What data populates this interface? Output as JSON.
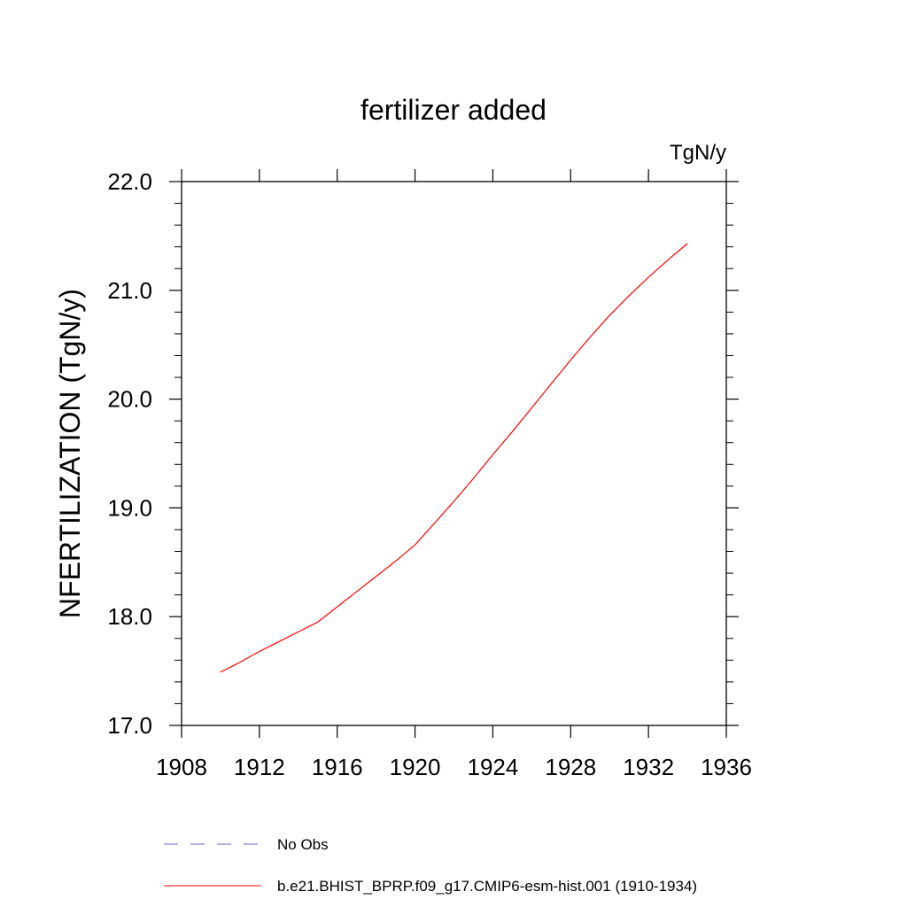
{
  "chart_data": {
    "type": "line",
    "title": "fertilizer added",
    "units_label": "TgN/y",
    "ylabel": "NFERTILIZATION  (TgN/y)",
    "xlabel": "",
    "xlim": [
      1908,
      1936
    ],
    "ylim": [
      17.0,
      22.0
    ],
    "x_ticks": [
      "1908",
      "1912",
      "1916",
      "1920",
      "1924",
      "1928",
      "1932",
      "1936"
    ],
    "y_ticks": [
      "17.0",
      "18.0",
      "19.0",
      "20.0",
      "21.0",
      "22.0"
    ],
    "grid": false,
    "legend_position": "bottom",
    "series": [
      {
        "name": "b.e21.BHIST_BPRP.f09_g17.CMIP6-esm-hist.001 (1910-1934)",
        "color": "#ff0000",
        "style": "solid",
        "x": [
          1910,
          1911,
          1912,
          1913,
          1914,
          1915,
          1916,
          1917,
          1918,
          1919,
          1920,
          1921,
          1922,
          1923,
          1924,
          1925,
          1926,
          1927,
          1928,
          1929,
          1930,
          1931,
          1932,
          1933,
          1934
        ],
        "y": [
          17.49,
          17.58,
          17.68,
          17.77,
          17.86,
          17.95,
          18.09,
          18.23,
          18.37,
          18.51,
          18.66,
          18.86,
          19.06,
          19.27,
          19.49,
          19.7,
          19.92,
          20.14,
          20.36,
          20.57,
          20.77,
          20.95,
          21.12,
          21.28,
          21.43
        ]
      }
    ],
    "legend": [
      {
        "label": "No Obs",
        "color": "#6666cc",
        "style": "dashed"
      },
      {
        "label": "b.e21.BHIST_BPRP.f09_g17.CMIP6-esm-hist.001 (1910-1934)",
        "color": "#ff0000",
        "style": "solid"
      }
    ]
  }
}
